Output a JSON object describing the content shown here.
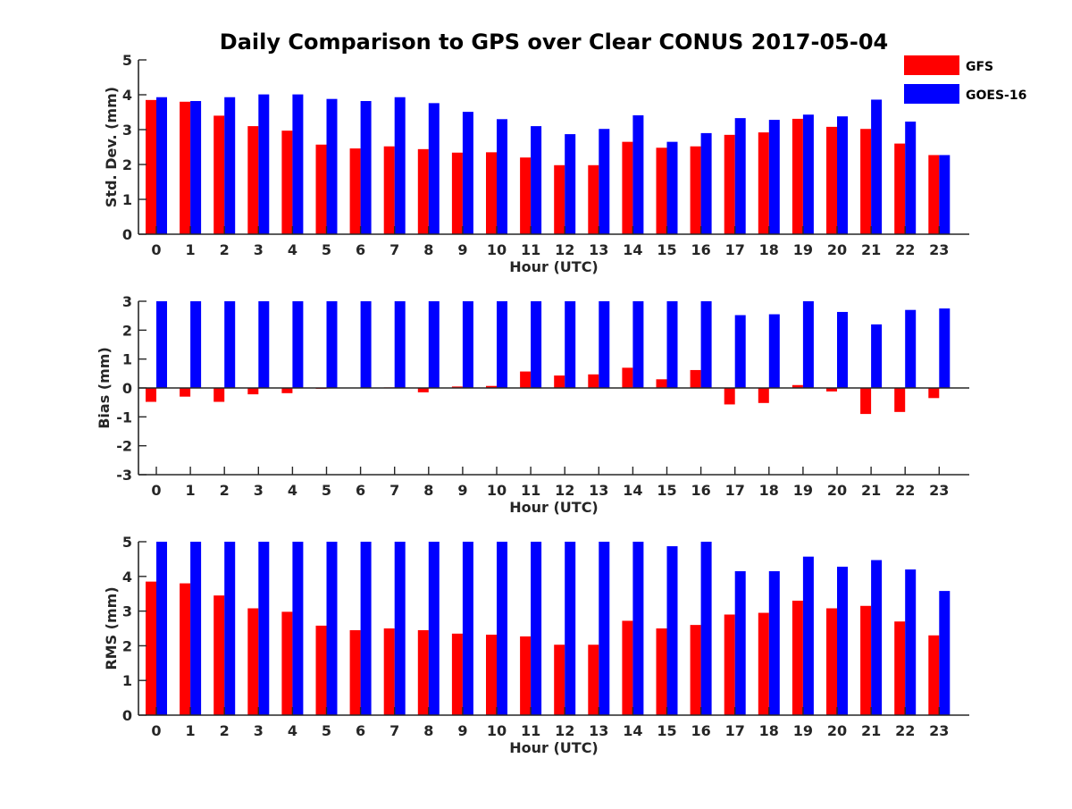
{
  "figure_title": "Daily Comparison to GPS over Clear CONUS 2017-05-04",
  "colors": {
    "gfs": "#ff0000",
    "goes": "#0000ff",
    "axis": "#262626",
    "background": "#ffffff"
  },
  "legend": [
    {
      "label": "GFS",
      "color": "#ff0000"
    },
    {
      "label": "GOES-16",
      "color": "#0000ff"
    }
  ],
  "chart_data": [
    {
      "type": "bar",
      "title": "",
      "xlabel": "Hour (UTC)",
      "ylabel": "Std. Dev. (mm)",
      "ylim": [
        0,
        5
      ],
      "yticks": [
        0,
        1,
        2,
        3,
        4,
        5
      ],
      "categories": [
        "0",
        "1",
        "2",
        "3",
        "4",
        "5",
        "6",
        "7",
        "8",
        "9",
        "10",
        "11",
        "12",
        "13",
        "14",
        "15",
        "16",
        "17",
        "18",
        "19",
        "20",
        "21",
        "22",
        "23"
      ],
      "series": [
        {
          "name": "GFS",
          "values": [
            3.85,
            3.8,
            3.4,
            3.1,
            2.97,
            2.57,
            2.46,
            2.52,
            2.44,
            2.34,
            2.35,
            2.2,
            1.98,
            1.98,
            2.65,
            2.48,
            2.52,
            2.85,
            2.92,
            3.31,
            3.08,
            3.02,
            2.6,
            2.27
          ]
        },
        {
          "name": "GOES-16",
          "values": [
            3.93,
            3.82,
            3.93,
            4.01,
            4.01,
            3.88,
            3.82,
            3.93,
            3.76,
            3.51,
            3.3,
            3.1,
            2.87,
            3.02,
            3.41,
            2.65,
            2.9,
            3.33,
            3.28,
            3.43,
            3.38,
            3.86,
            3.23,
            2.27
          ]
        }
      ]
    },
    {
      "type": "bar",
      "title": "",
      "xlabel": "Hour (UTC)",
      "ylabel": "Bias (mm)",
      "ylim": [
        -3,
        3
      ],
      "yticks": [
        -3,
        -2,
        -1,
        0,
        1,
        2,
        3
      ],
      "categories": [
        "0",
        "1",
        "2",
        "3",
        "4",
        "5",
        "6",
        "7",
        "8",
        "9",
        "10",
        "11",
        "12",
        "13",
        "14",
        "15",
        "16",
        "17",
        "18",
        "19",
        "20",
        "21",
        "22",
        "23"
      ],
      "series": [
        {
          "name": "GFS",
          "values": [
            -0.48,
            -0.3,
            -0.48,
            -0.22,
            -0.18,
            -0.03,
            0.0,
            0.02,
            -0.15,
            0.05,
            0.07,
            0.57,
            0.43,
            0.47,
            0.7,
            0.3,
            0.62,
            -0.57,
            -0.52,
            0.1,
            -0.12,
            -0.9,
            -0.83,
            -0.35
          ]
        },
        {
          "name": "GOES-16",
          "values": [
            3.0,
            3.0,
            3.0,
            3.0,
            3.0,
            3.0,
            3.0,
            3.0,
            3.0,
            3.0,
            3.0,
            3.0,
            3.0,
            3.0,
            3.0,
            3.0,
            3.0,
            2.52,
            2.55,
            3.0,
            2.63,
            2.2,
            2.7,
            2.75
          ]
        }
      ]
    },
    {
      "type": "bar",
      "title": "",
      "xlabel": "Hour (UTC)",
      "ylabel": "RMS (mm)",
      "ylim": [
        0,
        5
      ],
      "yticks": [
        0,
        1,
        2,
        3,
        4,
        5
      ],
      "categories": [
        "0",
        "1",
        "2",
        "3",
        "4",
        "5",
        "6",
        "7",
        "8",
        "9",
        "10",
        "11",
        "12",
        "13",
        "14",
        "15",
        "16",
        "17",
        "18",
        "19",
        "20",
        "21",
        "22",
        "23"
      ],
      "series": [
        {
          "name": "GFS",
          "values": [
            3.85,
            3.8,
            3.45,
            3.08,
            2.98,
            2.58,
            2.45,
            2.5,
            2.45,
            2.35,
            2.32,
            2.27,
            2.03,
            2.03,
            2.72,
            2.5,
            2.6,
            2.9,
            2.95,
            3.3,
            3.08,
            3.15,
            2.7,
            2.3
          ]
        },
        {
          "name": "GOES-16",
          "values": [
            5.0,
            5.0,
            5.0,
            5.0,
            5.0,
            5.0,
            5.0,
            5.0,
            5.0,
            5.0,
            5.0,
            5.0,
            5.0,
            5.0,
            5.0,
            4.87,
            5.0,
            4.15,
            4.15,
            4.57,
            4.28,
            4.47,
            4.2,
            3.58
          ]
        }
      ]
    }
  ]
}
